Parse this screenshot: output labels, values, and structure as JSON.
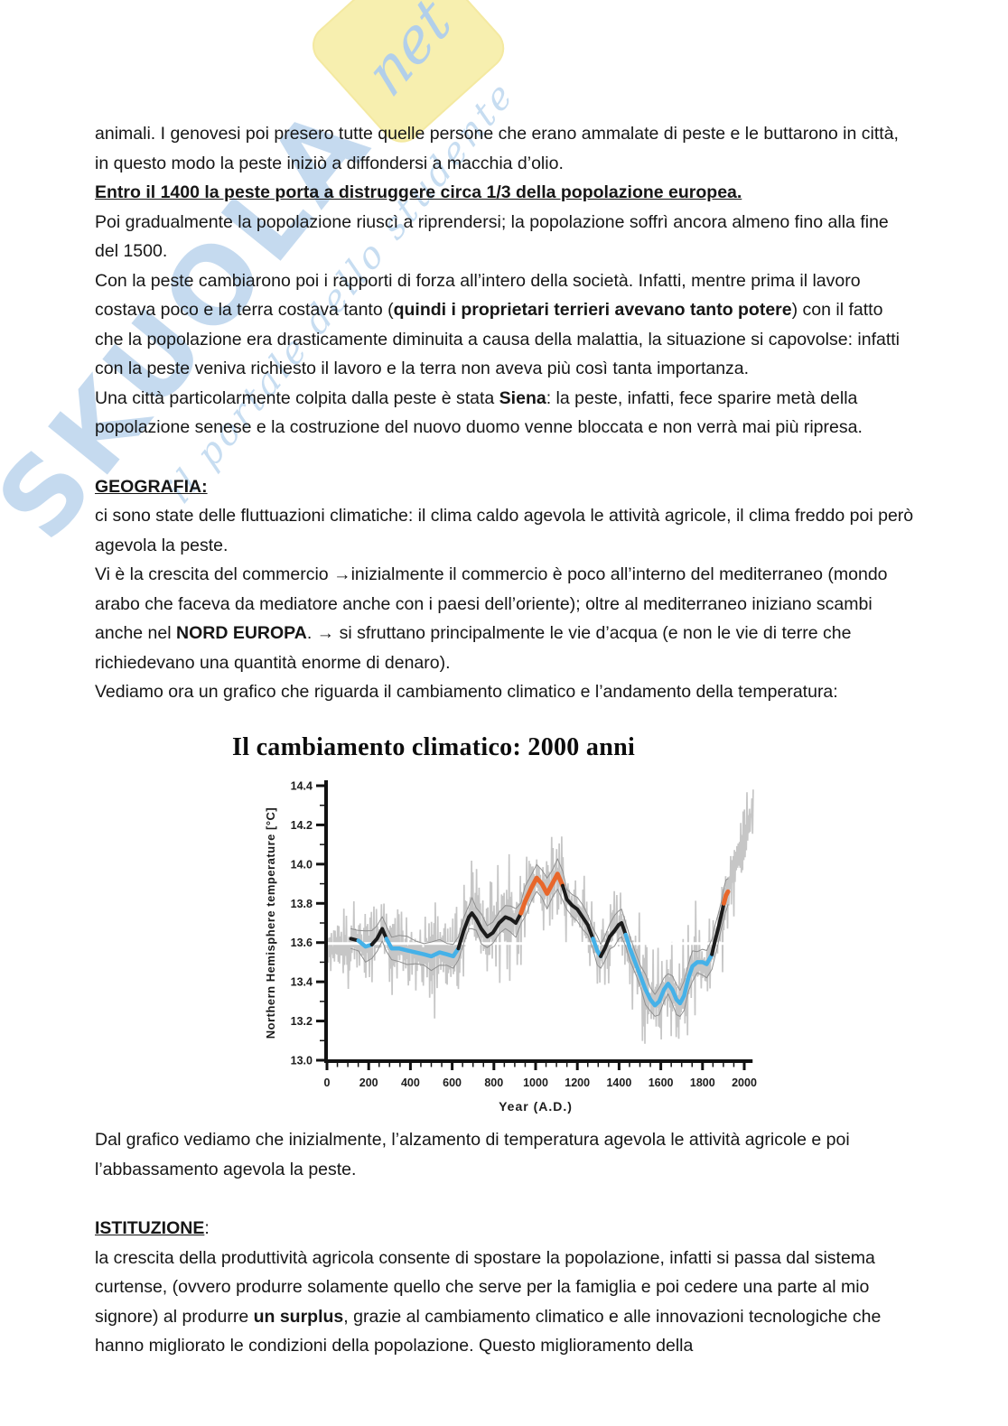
{
  "watermark": {
    "word": "SKUOLA",
    "net": "net",
    "tagline": "il portale dello studente"
  },
  "content": {
    "p_animali": [
      {
        "t": "animali. I genovesi poi presero tutte quelle persone che erano ammalate di peste e le buttarono in città, in questo modo la peste iniziò a diffondersi a macchia d’olio."
      }
    ],
    "p_entro": [
      {
        "t": "Entro il 1400 la peste porta a distruggere circa 1/3 della popolazione europea.",
        "b": true,
        "u": true
      }
    ],
    "p_poi": [
      {
        "t": "Poi gradualmente la popolazione riuscì a riprendersi; la popolazione soffrì ancora almeno fino alla fine del 1500."
      }
    ],
    "p_con": [
      {
        "t": "Con la peste cambiarono poi i rapporti di forza all’intero della società. Infatti, mentre prima il lavoro costava poco e la terra costava tanto ("
      },
      {
        "t": "quindi i proprietari terrieri avevano tanto potere",
        "b": true
      },
      {
        "t": ") con il fatto che la popolazione era drasticamente diminuita a causa della malattia, la situazione si capovolse: infatti con la peste veniva richiesto il lavoro e la terra non aveva più così tanta importanza."
      }
    ],
    "p_una": [
      {
        "t": "Una città particolarmente colpita dalla peste è stata "
      },
      {
        "t": "Siena",
        "b": true
      },
      {
        "t": ": la peste, infatti, fece sparire metà della popolazione senese e la costruzione del nuovo duomo venne bloccata e non verrà mai più ripresa."
      }
    ],
    "h_geografia": [
      {
        "t": "GEOGRAFIA:",
        "b": true,
        "u": true
      }
    ],
    "p_clima": [
      {
        "t": "ci sono state delle fluttuazioni climatiche: il clima caldo agevola le attività agricole, il clima freddo poi però agevola la peste."
      }
    ],
    "p_commercio": [
      {
        "t": "Vi è la crescita del commercio →inizialmente il commercio è poco all’interno del mediterraneo (mondo arabo che faceva da mediatore anche con i paesi dell’oriente); oltre al mediterraneo iniziano scambi anche nel "
      },
      {
        "t": "NORD EUROPA",
        "b": true
      },
      {
        "t": ". → si sfruttano principalmente le vie d’acqua (e non le vie di terre che richiedevano una quantità enorme di denaro)."
      }
    ],
    "p_vediamo": [
      {
        "t": "Vediamo ora un grafico che riguarda il cambiamento climatico e l’andamento della temperatura:"
      }
    ],
    "p_dal": [
      {
        "t": "Dal grafico vediamo che inizialmente, l’alzamento di temperatura agevola le attività agricole e poi l’abbassamento agevola la peste."
      }
    ],
    "h_istituzione": [
      {
        "t": "ISTITUZIONE",
        "b": true,
        "u": true
      },
      {
        "t": ":"
      }
    ],
    "p_crescita": [
      {
        "t": "la crescita della produttività agricola consente di spostare la popolazione, infatti si passa dal sistema curtense, (ovvero produrre solamente quello che serve per la famiglia e poi cedere una parte al mio signore) al produrre "
      },
      {
        "t": "un surplus",
        "b": true
      },
      {
        "t": ", grazie al cambiamento climatico e alle innovazioni tecnologiche che hanno migliorato le condizioni della popolazione. Questo miglioramento della"
      }
    ]
  },
  "chart_data": {
    "type": "line",
    "title": "Il cambiamento climatico: 2000 anni",
    "xlabel": "Year (A.D.)",
    "ylabel": "Northern Hemisphere temperature [°C]",
    "xlim": [
      0,
      2050
    ],
    "ylim": [
      13.0,
      14.4
    ],
    "xticks": [
      0,
      200,
      400,
      600,
      800,
      1000,
      1200,
      1400,
      1600,
      1800,
      2000
    ],
    "yticks": [
      13.0,
      13.2,
      13.4,
      13.6,
      13.8,
      14.0,
      14.2,
      14.4
    ],
    "baseline": 13.595,
    "grid": false,
    "legend": null,
    "colors": {
      "axis": "#121212",
      "noise": "#c6c6c6",
      "envelope": "#8f8f8f",
      "baseline_line": "#ffffff",
      "smooth_black": "#1b1b1b",
      "smooth_blue": "#45b1e8",
      "smooth_orange": "#e8672b"
    },
    "noise": {
      "seed": 42,
      "step": 3,
      "amplitude": 0.13,
      "x_start": 6,
      "x_end": 2045
    },
    "envelope_offset": 0.065,
    "series": [
      {
        "name": "smoothed-reconstruction",
        "points": [
          [
            115,
            13.62,
            "k"
          ],
          [
            150,
            13.61,
            "k"
          ],
          [
            185,
            13.58,
            "b"
          ],
          [
            215,
            13.59,
            "b"
          ],
          [
            240,
            13.62,
            "k"
          ],
          [
            265,
            13.67,
            "k"
          ],
          [
            285,
            13.62,
            "k"
          ],
          [
            310,
            13.57,
            "b"
          ],
          [
            345,
            13.57,
            "b"
          ],
          [
            385,
            13.56,
            "b"
          ],
          [
            425,
            13.55,
            "b"
          ],
          [
            465,
            13.54,
            "b"
          ],
          [
            500,
            13.53,
            "b"
          ],
          [
            540,
            13.55,
            "b"
          ],
          [
            575,
            13.54,
            "b"
          ],
          [
            605,
            13.53,
            "b"
          ],
          [
            630,
            13.57,
            "b"
          ],
          [
            655,
            13.66,
            "k"
          ],
          [
            680,
            13.73,
            "k"
          ],
          [
            695,
            13.75,
            "k"
          ],
          [
            715,
            13.72,
            "k"
          ],
          [
            740,
            13.67,
            "k"
          ],
          [
            768,
            13.63,
            "k"
          ],
          [
            795,
            13.65,
            "k"
          ],
          [
            825,
            13.7,
            "k"
          ],
          [
            855,
            13.73,
            "k"
          ],
          [
            880,
            13.72,
            "k"
          ],
          [
            905,
            13.7,
            "k"
          ],
          [
            930,
            13.75,
            "k"
          ],
          [
            950,
            13.81,
            "o"
          ],
          [
            980,
            13.88,
            "o"
          ],
          [
            1005,
            13.93,
            "o"
          ],
          [
            1030,
            13.9,
            "o"
          ],
          [
            1055,
            13.85,
            "o"
          ],
          [
            1080,
            13.9,
            "o"
          ],
          [
            1105,
            13.95,
            "o"
          ],
          [
            1130,
            13.89,
            "o"
          ],
          [
            1150,
            13.82,
            "k"
          ],
          [
            1175,
            13.79,
            "k"
          ],
          [
            1200,
            13.77,
            "k"
          ],
          [
            1225,
            13.73,
            "k"
          ],
          [
            1250,
            13.69,
            "k"
          ],
          [
            1275,
            13.62,
            "k"
          ],
          [
            1295,
            13.56,
            "b"
          ],
          [
            1312,
            13.53,
            "b"
          ],
          [
            1332,
            13.57,
            "k"
          ],
          [
            1355,
            13.63,
            "k"
          ],
          [
            1378,
            13.66,
            "k"
          ],
          [
            1398,
            13.69,
            "k"
          ],
          [
            1412,
            13.7,
            "k"
          ],
          [
            1432,
            13.64,
            "k"
          ],
          [
            1452,
            13.57,
            "b"
          ],
          [
            1477,
            13.5,
            "b"
          ],
          [
            1502,
            13.43,
            "b"
          ],
          [
            1527,
            13.36,
            "b"
          ],
          [
            1550,
            13.31,
            "b"
          ],
          [
            1572,
            13.28,
            "b"
          ],
          [
            1592,
            13.3,
            "b"
          ],
          [
            1615,
            13.36,
            "b"
          ],
          [
            1635,
            13.39,
            "b"
          ],
          [
            1655,
            13.36,
            "b"
          ],
          [
            1675,
            13.31,
            "b"
          ],
          [
            1692,
            13.29,
            "b"
          ],
          [
            1712,
            13.33,
            "b"
          ],
          [
            1732,
            13.42,
            "b"
          ],
          [
            1752,
            13.48,
            "b"
          ],
          [
            1775,
            13.5,
            "b"
          ],
          [
            1800,
            13.5,
            "b"
          ],
          [
            1820,
            13.49,
            "b"
          ],
          [
            1845,
            13.54,
            "b"
          ],
          [
            1860,
            13.61,
            "k"
          ],
          [
            1875,
            13.67,
            "k"
          ],
          [
            1890,
            13.74,
            "k"
          ],
          [
            1902,
            13.8,
            "k"
          ],
          [
            1912,
            13.84,
            "o"
          ],
          [
            1922,
            13.86,
            "o"
          ]
        ]
      },
      {
        "name": "annual-noise-center-extension",
        "points": [
          [
            1922,
            13.88
          ],
          [
            1950,
            13.95
          ],
          [
            1980,
            14.05
          ],
          [
            2010,
            14.18
          ],
          [
            2045,
            14.3
          ]
        ]
      }
    ]
  }
}
